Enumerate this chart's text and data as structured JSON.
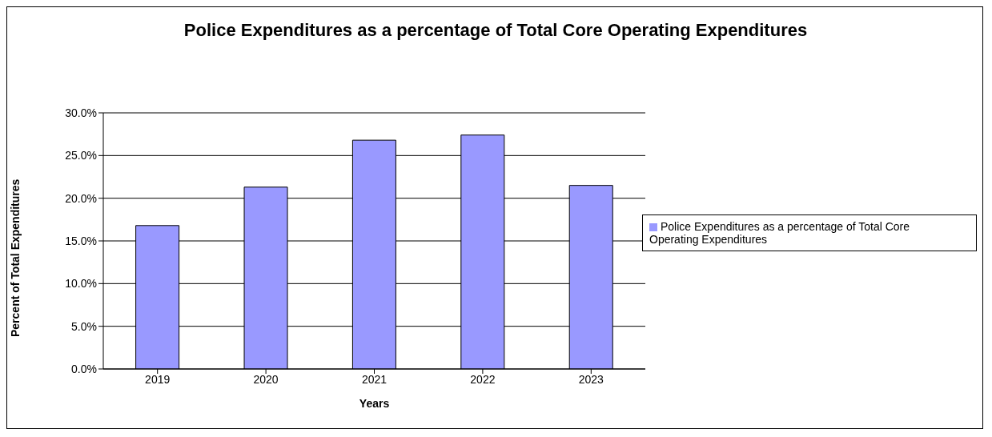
{
  "chart_data": {
    "type": "bar",
    "title": "Police Expenditures as a percentage of Total Core Operating Expenditures",
    "xlabel": "Years",
    "ylabel": "Percent of Total Expenditures",
    "categories": [
      "2019",
      "2020",
      "2021",
      "2022",
      "2023"
    ],
    "series": [
      {
        "name": "Police Expenditures as a percentage of Total Core Operating Expenditures",
        "color": "#9999ff",
        "values": [
          16.8,
          21.3,
          26.8,
          27.4,
          21.5
        ]
      }
    ],
    "ylim": [
      0,
      30
    ],
    "yticks": [
      {
        "value": 0,
        "label": "0.0%"
      },
      {
        "value": 5,
        "label": "5.0%"
      },
      {
        "value": 10,
        "label": "10.0%"
      },
      {
        "value": 15,
        "label": "15.0%"
      },
      {
        "value": 20,
        "label": "20.0%"
      },
      {
        "value": 25,
        "label": "25.0%"
      },
      {
        "value": 30,
        "label": "30.0%"
      }
    ],
    "grid": "y",
    "legend": "right"
  }
}
